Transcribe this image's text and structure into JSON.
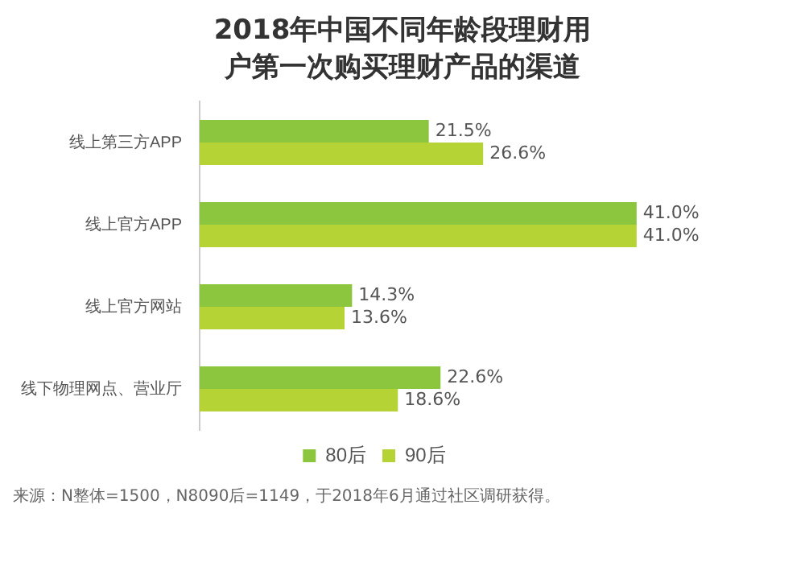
{
  "chart_data": {
    "type": "bar",
    "orientation": "horizontal",
    "title": "2018年中国不同年龄段理财用户第一次购买理财产品的渠道",
    "categories": [
      "线上第三方APP",
      "线上官方APP",
      "线上官方网站",
      "线下物理网点、营业厅"
    ],
    "series": [
      {
        "name": "80后",
        "color": "#8cc63f",
        "values": [
          21.5,
          41.0,
          14.3,
          22.6
        ],
        "value_labels": [
          "21.5%",
          "41.0%",
          "14.3%",
          "22.6%"
        ]
      },
      {
        "name": "90后",
        "color": "#b5d334",
        "values": [
          26.6,
          41.0,
          13.6,
          18.6
        ],
        "value_labels": [
          "26.6%",
          "41.0%",
          "13.6%",
          "18.6%"
        ]
      }
    ],
    "legend": "bottom",
    "grid": false,
    "tick_labels": "y",
    "annotations": [
      "来源：N整体=1500，N8090后=1149，于2018年6月通过社区调研获得。"
    ]
  }
}
